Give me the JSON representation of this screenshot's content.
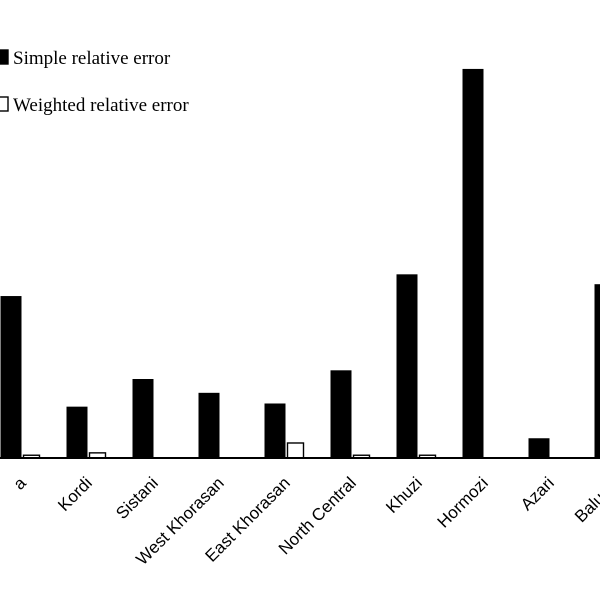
{
  "chart_data": {
    "type": "bar",
    "categories": [
      "a",
      "Kordi",
      "Sistani",
      "West Khorasan",
      "East Khorasan",
      "North Central",
      "Khuzi",
      "Hormozi",
      "Azari",
      "Baluchi"
    ],
    "series": [
      {
        "name": "Simple relative error",
        "color": "#000000",
        "values": [
          41,
          13,
          20,
          16.5,
          13.8,
          22.2,
          46.5,
          98.5,
          5,
          44
        ]
      },
      {
        "name": "Weighted relative error",
        "color": "#ffffff",
        "values": [
          0.7,
          1.3,
          0,
          0,
          3.8,
          0.7,
          0.7,
          0,
          0,
          0
        ]
      }
    ],
    "ylim": [
      0,
      100
    ],
    "grid": false,
    "legend_position": "top-left"
  }
}
